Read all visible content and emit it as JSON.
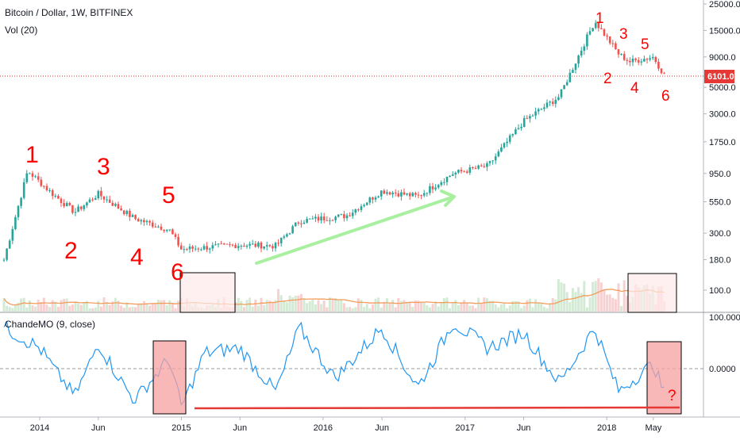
{
  "header": {
    "symbol_title": "Bitcoin / Dollar, 1W, BITFINEX",
    "volume_label": "Vol (20)"
  },
  "price_axis": {
    "ticks": [
      "25000.0",
      "15000.0",
      "9000.0",
      "5000.0",
      "3000.0",
      "1750.0",
      "950.0",
      "550.0",
      "300.0",
      "180.0",
      "100.0"
    ],
    "current_price_label": "6101.0"
  },
  "oscillator": {
    "title": "ChandeMO (9, close)",
    "ticks": [
      "100.0000",
      "0.0000"
    ]
  },
  "time_axis": {
    "labels": [
      "2014",
      "Jun",
      "2015",
      "Jun",
      "2016",
      "Jun",
      "2017",
      "Jun",
      "2018",
      "May"
    ]
  },
  "annotations": {
    "wave_labels_left": [
      "1",
      "2",
      "3",
      "4",
      "5",
      "6"
    ],
    "wave_labels_right": [
      "1",
      "2",
      "3",
      "4",
      "5",
      "6"
    ],
    "question_mark": "?"
  },
  "colors": {
    "up_candle": "#26a69a",
    "down_candle": "#ef5350",
    "annotation_red": "#ff0000",
    "trend_arrow": "#a8f0a0",
    "volume_ma": "#f39c5a",
    "cmo_line": "#2196f3",
    "price_line": "#e53935",
    "highlight_fill": "#f7a0a0"
  },
  "chart_data": {
    "type": "candlestick",
    "title": "Bitcoin / Dollar, 1W, BITFINEX",
    "y_scale": "log",
    "ylim": [
      100,
      25000
    ],
    "current_price": 6101.0,
    "approx_close_path": [
      {
        "x": "2013-10",
        "close": 180
      },
      {
        "x": "2013-12",
        "close": 1000
      },
      {
        "x": "2014-02",
        "close": 650
      },
      {
        "x": "2014-04",
        "close": 450
      },
      {
        "x": "2014-06",
        "close": 640
      },
      {
        "x": "2014-09",
        "close": 400
      },
      {
        "x": "2014-12",
        "close": 320
      },
      {
        "x": "2015-01",
        "close": 220
      },
      {
        "x": "2015-06",
        "close": 240
      },
      {
        "x": "2015-09",
        "close": 235
      },
      {
        "x": "2015-11",
        "close": 380
      },
      {
        "x": "2016-03",
        "close": 420
      },
      {
        "x": "2016-06",
        "close": 680
      },
      {
        "x": "2016-09",
        "close": 610
      },
      {
        "x": "2016-12",
        "close": 950
      },
      {
        "x": "2017-03",
        "close": 1100
      },
      {
        "x": "2017-06",
        "close": 2600
      },
      {
        "x": "2017-09",
        "close": 4200
      },
      {
        "x": "2017-12",
        "close": 18000
      },
      {
        "x": "2018-02",
        "close": 9500
      },
      {
        "x": "2018-03",
        "close": 8200
      },
      {
        "x": "2018-05",
        "close": 9000
      },
      {
        "x": "2018-06",
        "close": 6101
      }
    ],
    "oscillator": {
      "name": "ChandeMO (9, close)",
      "ylim": [
        -100,
        100
      ],
      "approx_values": [
        {
          "x": "2013-10",
          "value": 80
        },
        {
          "x": "2014-01",
          "value": 40
        },
        {
          "x": "2014-04",
          "value": -60
        },
        {
          "x": "2014-06",
          "value": 50
        },
        {
          "x": "2014-09",
          "value": -70
        },
        {
          "x": "2014-12",
          "value": 20
        },
        {
          "x": "2015-01",
          "value": -85
        },
        {
          "x": "2015-03",
          "value": 30
        },
        {
          "x": "2015-06",
          "value": 40
        },
        {
          "x": "2015-09",
          "value": -50
        },
        {
          "x": "2015-11",
          "value": 80
        },
        {
          "x": "2016-02",
          "value": -20
        },
        {
          "x": "2016-06",
          "value": 80
        },
        {
          "x": "2016-09",
          "value": -40
        },
        {
          "x": "2016-12",
          "value": 90
        },
        {
          "x": "2017-03",
          "value": 40
        },
        {
          "x": "2017-06",
          "value": 70
        },
        {
          "x": "2017-09",
          "value": -30
        },
        {
          "x": "2017-12",
          "value": 80
        },
        {
          "x": "2018-02",
          "value": -50
        },
        {
          "x": "2018-05",
          "value": 10
        },
        {
          "x": "2018-06",
          "value": -60
        }
      ]
    }
  }
}
